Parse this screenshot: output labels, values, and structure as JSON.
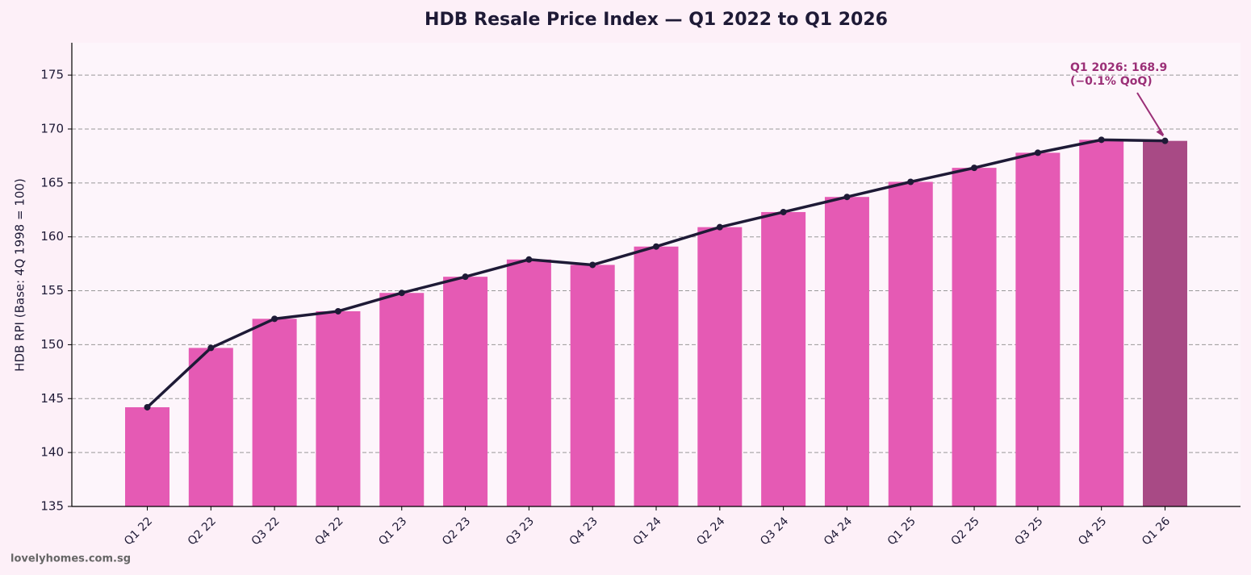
{
  "chart_data": {
    "type": "bar",
    "title": "HDB Resale Price Index — Q1 2022 to Q1 2026",
    "y_label": "HDB RPI (Base: 4Q 1998 = 100)",
    "categories": [
      "Q1 22",
      "Q2 22",
      "Q3 22",
      "Q4 22",
      "Q1 23",
      "Q2 23",
      "Q3 23",
      "Q4 23",
      "Q1 24",
      "Q2 24",
      "Q3 24",
      "Q4 24",
      "Q1 25",
      "Q2 25",
      "Q3 25",
      "Q4 25",
      "Q1 26"
    ],
    "values": [
      144.2,
      149.7,
      152.4,
      153.1,
      154.8,
      156.3,
      157.9,
      157.4,
      159.1,
      160.9,
      162.3,
      163.7,
      165.1,
      166.4,
      167.8,
      169.0,
      168.9
    ],
    "colors": [
      "#e55ab4",
      "#e55ab4",
      "#e55ab4",
      "#e55ab4",
      "#e55ab4",
      "#e55ab4",
      "#e55ab4",
      "#e55ab4",
      "#e55ab4",
      "#e55ab4",
      "#e55ab4",
      "#e55ab4",
      "#e55ab4",
      "#e55ab4",
      "#e55ab4",
      "#e55ab4",
      "#a84a85"
    ],
    "line": true,
    "line_color": "#1e1a36",
    "ylim": [
      135,
      178
    ],
    "yticks": [
      135,
      140,
      145,
      150,
      155,
      160,
      165,
      170,
      175
    ],
    "grid": true,
    "annotation": {
      "lines": [
        "Q1 2026: 168.9",
        "(−0.1% QoQ)"
      ],
      "color": "#9b2f77"
    },
    "watermark": "lovelyhomes.com.sg"
  }
}
